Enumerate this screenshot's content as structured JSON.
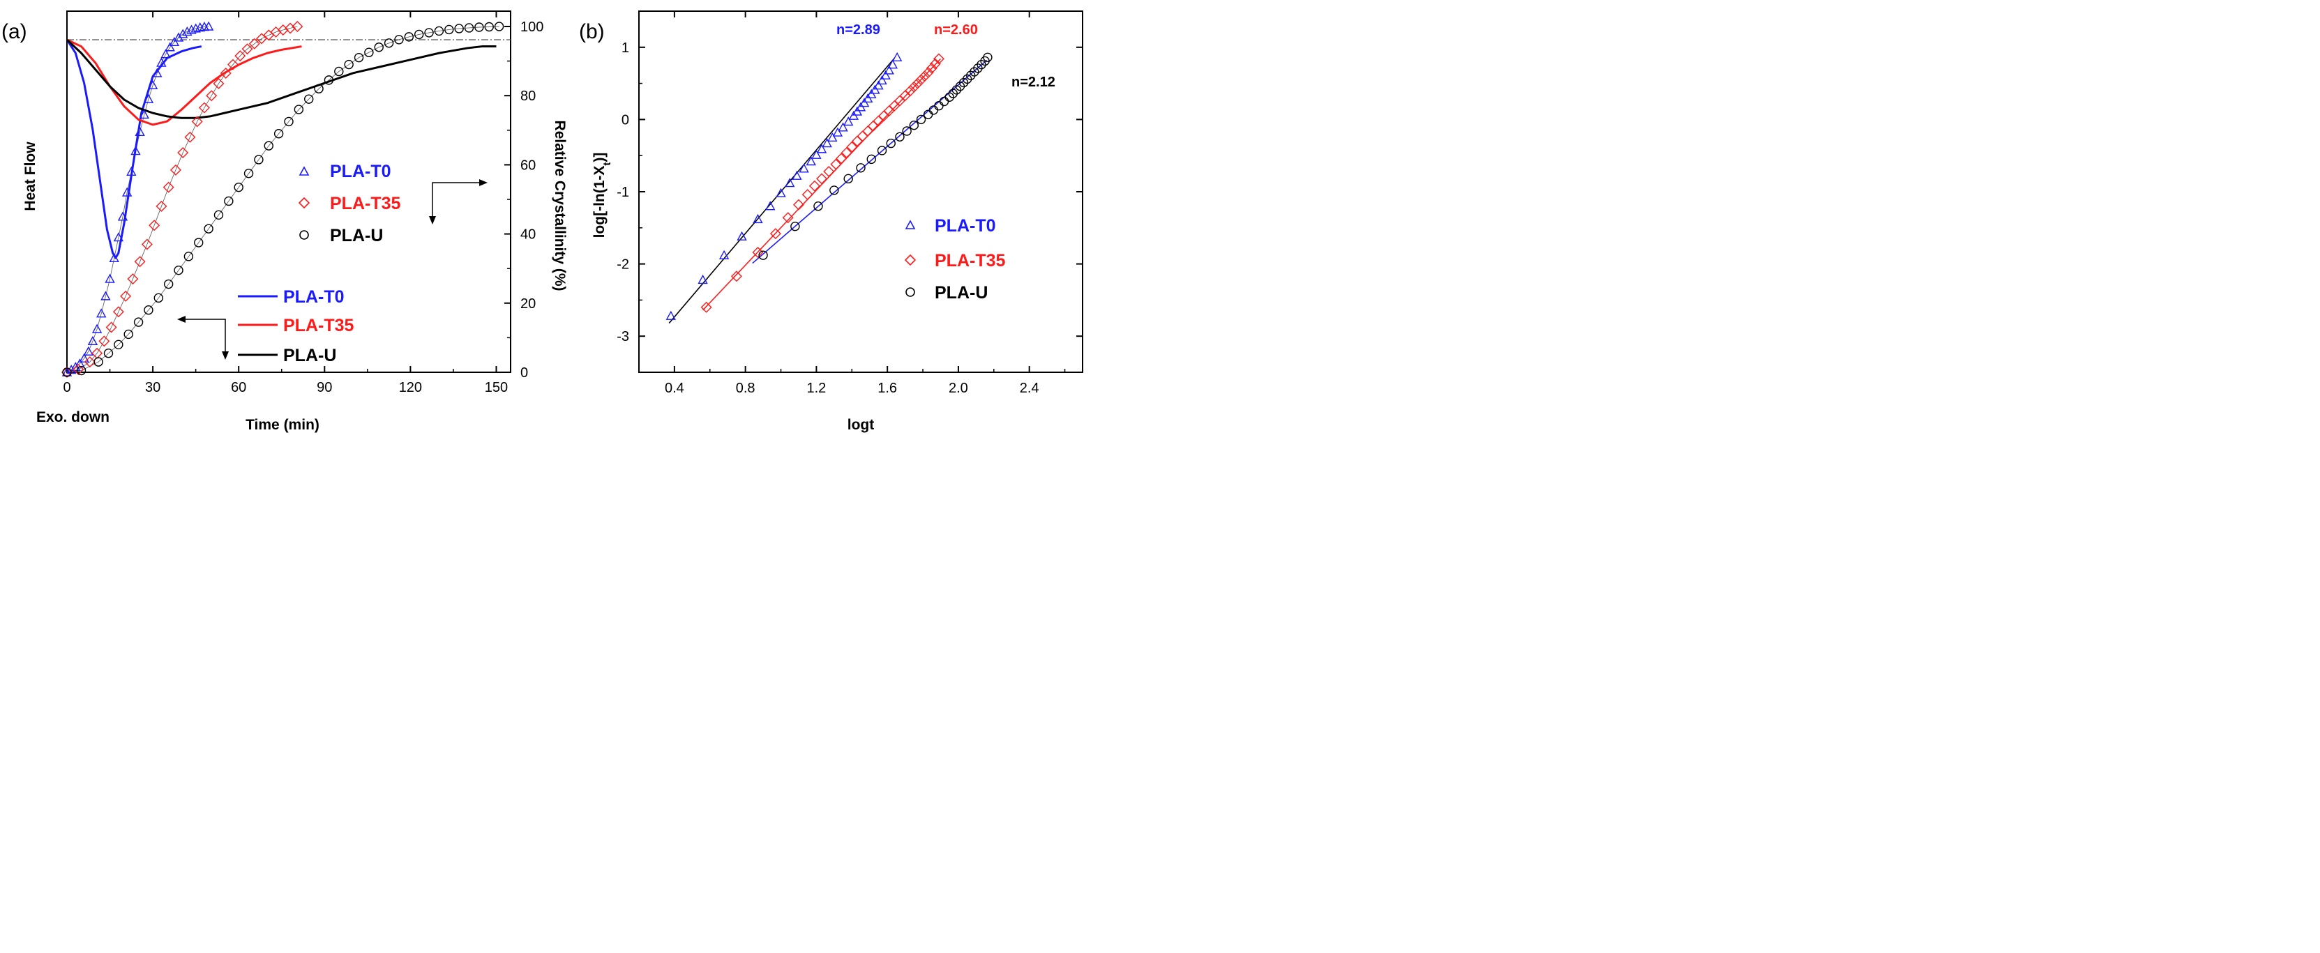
{
  "chart_data": [
    {
      "panel_label": "(a)",
      "type": "line",
      "xlabel": "Time (min)",
      "xlabel_note": "Exo. down",
      "ylabel_left": "Heat Flow",
      "ylabel_right": "Relative Crystallinity (%)",
      "xlim": [
        0,
        155
      ],
      "y2lim": [
        0,
        100
      ],
      "xticks": [
        "0",
        "30",
        "60",
        "90",
        "120",
        "150"
      ],
      "y2ticks": [
        "0",
        "20",
        "40",
        "60",
        "80",
        "100"
      ],
      "colors": {
        "PLA-T0": "#1a1aff",
        "PLA-T35": "#ff1a1a",
        "PLA-U": "#000000"
      },
      "heat_flow": {
        "note": "relative units, 1.0 = baseline",
        "series": [
          {
            "name": "PLA-T0",
            "x": [
              0,
              3,
              6,
              9,
              12,
              14,
              16,
              17,
              18,
              20,
              23,
              26,
              30,
              35,
              40,
              44,
              47
            ],
            "y": [
              1.0,
              0.96,
              0.87,
              0.73,
              0.55,
              0.43,
              0.36,
              0.345,
              0.36,
              0.45,
              0.62,
              0.78,
              0.89,
              0.945,
              0.965,
              0.975,
              0.98
            ]
          },
          {
            "name": "PLA-T35",
            "x": [
              0,
              5,
              10,
              15,
              20,
              25,
              30,
              35,
              40,
              45,
              50,
              55,
              60,
              65,
              70,
              75,
              82
            ],
            "y": [
              1.0,
              0.98,
              0.93,
              0.86,
              0.8,
              0.76,
              0.745,
              0.755,
              0.79,
              0.83,
              0.87,
              0.9,
              0.925,
              0.945,
              0.96,
              0.97,
              0.98
            ]
          },
          {
            "name": "PLA-U",
            "x": [
              0,
              5,
              10,
              15,
              20,
              25,
              30,
              35,
              40,
              45,
              50,
              55,
              60,
              70,
              80,
              90,
              100,
              110,
              120,
              130,
              140,
              145,
              150
            ],
            "y": [
              1.0,
              0.96,
              0.91,
              0.86,
              0.82,
              0.795,
              0.78,
              0.77,
              0.765,
              0.765,
              0.77,
              0.78,
              0.79,
              0.81,
              0.84,
              0.87,
              0.9,
              0.92,
              0.94,
              0.96,
              0.975,
              0.98,
              0.98
            ]
          }
        ]
      },
      "crystallinity": {
        "series": [
          {
            "name": "PLA-T0",
            "x": [
              0,
              1.5,
              3,
              4.5,
              6,
              7.5,
              9,
              10.5,
              12,
              13.5,
              15,
              16.5,
              18,
              19.5,
              21,
              22.5,
              24,
              25.5,
              27,
              28.5,
              30,
              31.5,
              33,
              34.5,
              36,
              37.5,
              39,
              40.5,
              42,
              43.5,
              45,
              46.5,
              48,
              49.5
            ],
            "y": [
              0,
              0.7,
              1.5,
              2.5,
              4,
              6,
              9,
              12.5,
              17,
              22,
              27,
              33,
              39,
              45,
              52,
              58,
              64,
              69.5,
              74.5,
              79,
              83,
              86.5,
              89.5,
              92,
              94,
              95.5,
              96.8,
              97.8,
              98.5,
              99,
              99.4,
              99.7,
              99.9,
              100
            ]
          },
          {
            "name": "PLA-T35",
            "x": [
              0,
              4,
              8,
              10.5,
              13,
              15.5,
              18,
              20.5,
              23,
              25.5,
              28,
              30.5,
              33,
              35.5,
              38,
              40.5,
              43,
              45.5,
              48,
              50.5,
              53,
              55.5,
              58,
              60.5,
              63,
              65.5,
              68,
              70.5,
              73,
              75.5,
              78,
              80.5
            ],
            "y": [
              0,
              0.8,
              3,
              5.5,
              9,
              13,
              17.5,
              22,
              27,
              32,
              37,
              42.5,
              48,
              53.5,
              58.5,
              63.5,
              68,
              72.5,
              76.5,
              80,
              83.5,
              86.5,
              89,
              91.5,
              93.5,
              95,
              96.5,
              97.5,
              98.4,
              99,
              99.5,
              100
            ]
          },
          {
            "name": "PLA-U",
            "x": [
              0,
              5,
              11,
              14.5,
              18,
              21.5,
              25,
              28.5,
              32,
              35.5,
              39,
              42.5,
              46,
              49.5,
              53,
              56.5,
              60,
              63.5,
              67,
              70.5,
              74,
              77.5,
              81,
              84.5,
              88,
              91.5,
              95,
              98.5,
              102,
              105.5,
              109,
              112.5,
              116,
              119.5,
              123,
              126.5,
              130,
              133.5,
              137,
              140.5,
              144,
              147.5,
              151
            ],
            "y": [
              0,
              0.5,
              3,
              5.5,
              8,
              11,
              14.5,
              18,
              21.5,
              25.5,
              29.5,
              33.5,
              37.5,
              41.5,
              45.5,
              49.5,
              53.5,
              57.5,
              61.5,
              65.5,
              69,
              72.5,
              76,
              79,
              82,
              84.5,
              87,
              89,
              91,
              92.5,
              94,
              95.2,
              96.2,
              97,
              97.7,
              98.2,
              98.7,
              99.1,
              99.4,
              99.6,
              99.8,
              99.9,
              100
            ]
          }
        ]
      },
      "legend_markers": [
        "PLA-T0",
        "PLA-T35",
        "PLA-U"
      ],
      "legend_lines": [
        "PLA-T0",
        "PLA-T35",
        "PLA-U"
      ]
    },
    {
      "panel_label": "(b)",
      "type": "scatter",
      "xlabel": "logt",
      "ylabel": "log[-ln(1-X_t)]",
      "xlim": [
        0.2,
        2.7
      ],
      "ylim": [
        -3.5,
        1.5
      ],
      "xticks": [
        "0.4",
        "0.8",
        "1.2",
        "1.6",
        "2.0",
        "2.4"
      ],
      "yticks": [
        "-3",
        "-2",
        "-1",
        "0",
        "1"
      ],
      "series": [
        {
          "name": "PLA-T0",
          "n_label": "n=2.89",
          "fit": [
            [
              0.37,
              -2.82
            ],
            [
              1.64,
              0.85
            ]
          ],
          "x": [
            0.38,
            0.56,
            0.68,
            0.78,
            0.87,
            0.94,
            1.0,
            1.05,
            1.09,
            1.13,
            1.17,
            1.2,
            1.23,
            1.26,
            1.29,
            1.32,
            1.35,
            1.38,
            1.41,
            1.43,
            1.45,
            1.47,
            1.49,
            1.51,
            1.53,
            1.55,
            1.57,
            1.59,
            1.61,
            1.63,
            1.655
          ],
          "y": [
            -2.72,
            -2.22,
            -1.88,
            -1.62,
            -1.38,
            -1.2,
            -1.02,
            -0.88,
            -0.78,
            -0.68,
            -0.58,
            -0.49,
            -0.41,
            -0.33,
            -0.25,
            -0.18,
            -0.11,
            -0.03,
            0.05,
            0.11,
            0.17,
            0.23,
            0.29,
            0.35,
            0.41,
            0.47,
            0.54,
            0.61,
            0.68,
            0.76,
            0.86
          ]
        },
        {
          "name": "PLA-T35",
          "n_label": "n=2.60",
          "fit": [
            [
              0.56,
              -2.64
            ],
            [
              1.9,
              0.84
            ]
          ],
          "x": [
            0.58,
            0.75,
            0.87,
            0.97,
            1.04,
            1.1,
            1.15,
            1.19,
            1.23,
            1.27,
            1.31,
            1.34,
            1.37,
            1.4,
            1.43,
            1.46,
            1.49,
            1.52,
            1.55,
            1.58,
            1.61,
            1.64,
            1.67,
            1.7,
            1.73,
            1.75,
            1.77,
            1.79,
            1.81,
            1.83,
            1.85,
            1.87,
            1.89
          ],
          "y": [
            -2.6,
            -2.17,
            -1.84,
            -1.58,
            -1.36,
            -1.18,
            -1.04,
            -0.92,
            -0.82,
            -0.72,
            -0.62,
            -0.54,
            -0.46,
            -0.38,
            -0.3,
            -0.23,
            -0.16,
            -0.09,
            -0.02,
            0.05,
            0.12,
            0.19,
            0.26,
            0.33,
            0.4,
            0.45,
            0.5,
            0.55,
            0.6,
            0.65,
            0.71,
            0.77,
            0.84
          ]
        },
        {
          "name": "PLA-U",
          "n_label": "n=2.12",
          "fit": [
            [
              0.84,
              -1.99
            ],
            [
              2.16,
              0.82
            ]
          ],
          "x": [
            0.9,
            1.08,
            1.21,
            1.3,
            1.38,
            1.45,
            1.51,
            1.57,
            1.62,
            1.67,
            1.71,
            1.75,
            1.79,
            1.83,
            1.86,
            1.89,
            1.92,
            1.95,
            1.97,
            1.99,
            2.01,
            2.03,
            2.05,
            2.07,
            2.09,
            2.11,
            2.13,
            2.15,
            2.165
          ],
          "y": [
            -1.88,
            -1.48,
            -1.2,
            -0.98,
            -0.82,
            -0.67,
            -0.55,
            -0.43,
            -0.33,
            -0.24,
            -0.16,
            -0.08,
            0.0,
            0.07,
            0.13,
            0.19,
            0.25,
            0.31,
            0.36,
            0.41,
            0.46,
            0.51,
            0.56,
            0.61,
            0.66,
            0.71,
            0.76,
            0.81,
            0.86
          ]
        }
      ],
      "legend": [
        "PLA-T0",
        "PLA-T35",
        "PLA-U"
      ]
    }
  ]
}
